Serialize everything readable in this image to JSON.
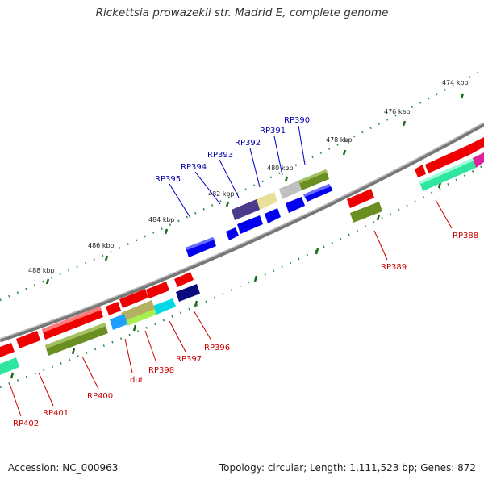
{
  "header": {
    "title": "Rickettsia prowazekii str. Madrid E, complete genome"
  },
  "footer": {
    "accession": "Accession: NC_000963",
    "summary": "Topology: circular; Length: 1,111,523 bp; Genes: 872"
  },
  "kbp_ticks": [
    "474 kbp",
    "476 kbp",
    "478 kbp",
    "480 kbp",
    "482 kbp",
    "484 kbp",
    "486 kbp",
    "488 kbp"
  ],
  "top_gene_labels": [
    "RP390",
    "RP391",
    "RP392",
    "RP393",
    "RP394",
    "RP395"
  ],
  "bottom_gene_labels": [
    "RP388",
    "RP389",
    "RP396",
    "RP397",
    "RP398",
    "dut",
    "RP400",
    "RP401",
    "RP402"
  ],
  "colors": {
    "forward_gene": "#0000ee",
    "reverse_gene": "#ee0000",
    "olive": "#6b8e23",
    "backbone": "#888888",
    "tick_green": "#228b22",
    "top_label": "#0000aa",
    "bottom_label": "#cc0000"
  }
}
